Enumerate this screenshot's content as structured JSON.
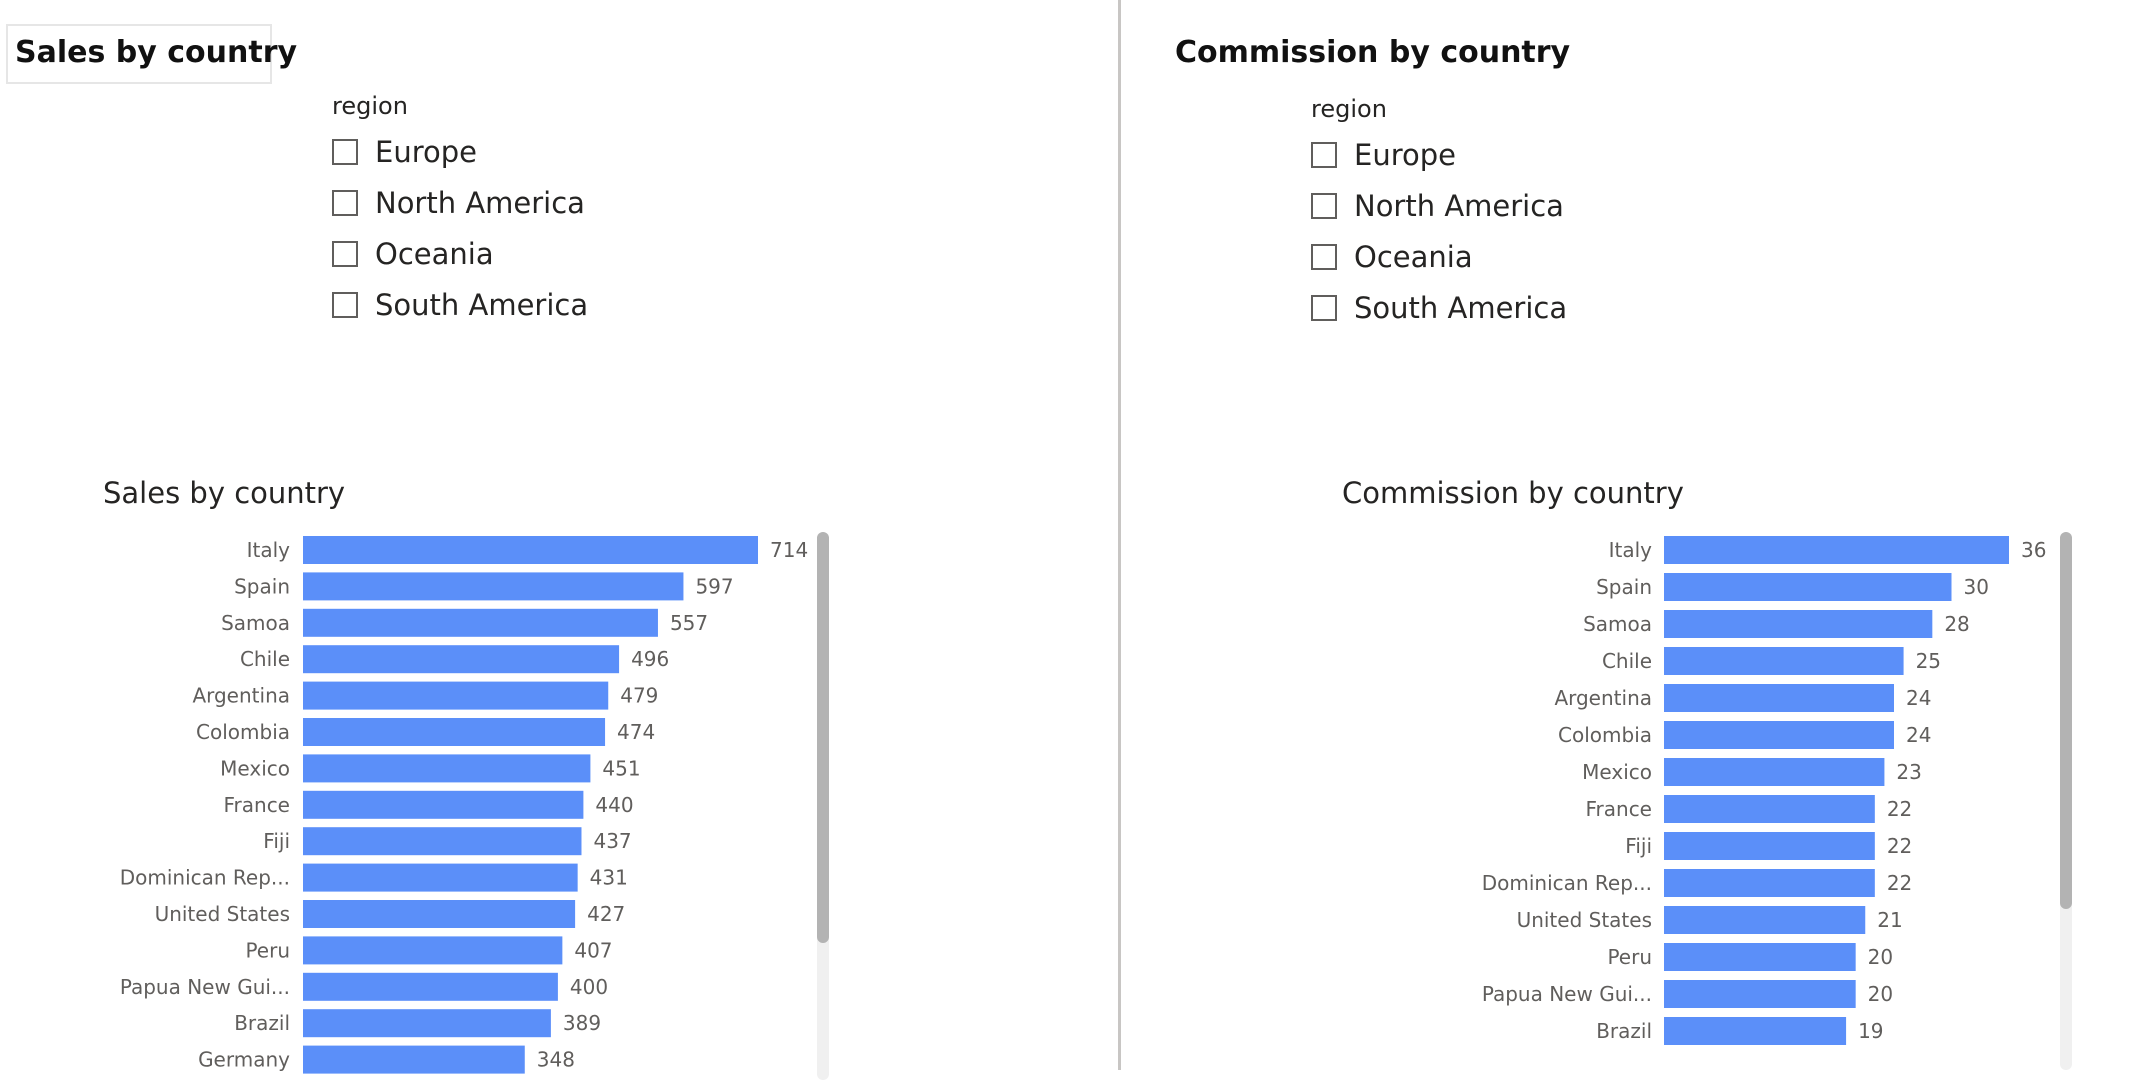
{
  "left": {
    "page_title": "Sales by country",
    "slicer": {
      "header": "region",
      "items": [
        {
          "label": "Europe",
          "checked": false
        },
        {
          "label": "North America",
          "checked": false
        },
        {
          "label": "Oceania",
          "checked": false
        },
        {
          "label": "South America",
          "checked": false
        }
      ]
    },
    "chart_title": "Sales by country"
  },
  "right": {
    "page_title": "Commission by country",
    "slicer": {
      "header": "region",
      "items": [
        {
          "label": "Europe",
          "checked": false
        },
        {
          "label": "North America",
          "checked": false
        },
        {
          "label": "Oceania",
          "checked": false
        },
        {
          "label": "South America",
          "checked": false
        }
      ]
    },
    "chart_title": "Commission by country"
  },
  "colors": {
    "bar": "#5b8ff9",
    "label_text": "#605e5c",
    "value_text": "#605e5c"
  },
  "chart_data": [
    {
      "type": "bar",
      "orientation": "horizontal",
      "title": "Sales by country",
      "categories": [
        "Italy",
        "Spain",
        "Samoa",
        "Chile",
        "Argentina",
        "Colombia",
        "Mexico",
        "France",
        "Fiji",
        "Dominican Rep...",
        "United States",
        "Peru",
        "Papua New Gui...",
        "Brazil",
        "Germany"
      ],
      "values": [
        714,
        597,
        557,
        496,
        479,
        474,
        451,
        440,
        437,
        431,
        427,
        407,
        400,
        389,
        348
      ],
      "scroll_visible_fraction": 0.75
    },
    {
      "type": "bar",
      "orientation": "horizontal",
      "title": "Commission by country",
      "categories": [
        "Italy",
        "Spain",
        "Samoa",
        "Chile",
        "Argentina",
        "Colombia",
        "Mexico",
        "France",
        "Fiji",
        "Dominican Rep...",
        "United States",
        "Peru",
        "Papua New Gui...",
        "Brazil"
      ],
      "values": [
        36,
        30,
        28,
        25,
        24,
        24,
        23,
        22,
        22,
        22,
        21,
        20,
        20,
        19
      ],
      "scroll_visible_fraction": 0.7
    }
  ]
}
